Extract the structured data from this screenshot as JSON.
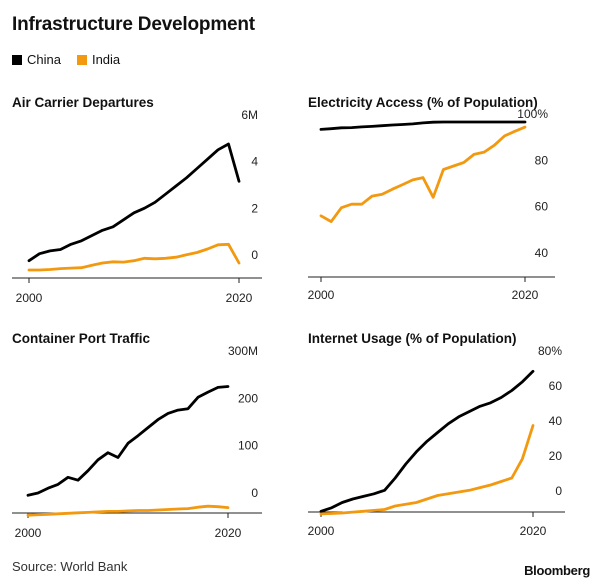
{
  "title": "Infrastructure Development",
  "legend": [
    {
      "name": "China",
      "color": "#000000"
    },
    {
      "name": "India",
      "color": "#f2990f"
    }
  ],
  "source": "Source: World Bank",
  "brand": "Bloomberg",
  "chart_data": [
    {
      "id": "air",
      "type": "line",
      "title": "Air Carrier Departures",
      "ylim": [
        0,
        6
      ],
      "xlim": [
        2000,
        2021
      ],
      "yticks": [
        {
          "v": 0,
          "label": "0"
        },
        {
          "v": 2,
          "label": "2"
        },
        {
          "v": 4,
          "label": "4"
        },
        {
          "v": 6,
          "label": "6M"
        }
      ],
      "xticks": [
        {
          "v": 2000,
          "label": "2000"
        },
        {
          "v": 2020,
          "label": "2020"
        }
      ],
      "series": [
        {
          "name": "China",
          "color": "#000000",
          "x": [
            2000,
            2001,
            2002,
            2003,
            2004,
            2005,
            2006,
            2007,
            2008,
            2009,
            2010,
            2011,
            2012,
            2013,
            2014,
            2015,
            2016,
            2017,
            2018,
            2019,
            2020
          ],
          "y": [
            0.1,
            0.4,
            0.52,
            0.58,
            0.8,
            0.95,
            1.18,
            1.4,
            1.55,
            1.85,
            2.15,
            2.35,
            2.6,
            2.95,
            3.3,
            3.65,
            4.05,
            4.45,
            4.85,
            5.1,
            3.5
          ]
        },
        {
          "name": "India",
          "color": "#f2990f",
          "x": [
            2000,
            2001,
            2002,
            2003,
            2004,
            2005,
            2006,
            2007,
            2008,
            2009,
            2010,
            2011,
            2012,
            2013,
            2014,
            2015,
            2016,
            2017,
            2018,
            2019,
            2020
          ],
          "y": [
            -0.3,
            -0.3,
            -0.28,
            -0.24,
            -0.22,
            -0.2,
            -0.1,
            0.0,
            0.05,
            0.04,
            0.1,
            0.2,
            0.18,
            0.2,
            0.25,
            0.35,
            0.45,
            0.6,
            0.78,
            0.8,
            0.0
          ]
        }
      ]
    },
    {
      "id": "elec",
      "type": "line",
      "title": "Electricity Access (% of Population)",
      "ylim": [
        40,
        100
      ],
      "xlim": [
        2000,
        2021
      ],
      "yticks": [
        {
          "v": 40,
          "label": "40"
        },
        {
          "v": 60,
          "label": "60"
        },
        {
          "v": 80,
          "label": "80"
        },
        {
          "v": 100,
          "label": "100%"
        }
      ],
      "xticks": [
        {
          "v": 2000,
          "label": "2000"
        },
        {
          "v": 2020,
          "label": "2020"
        }
      ],
      "series": [
        {
          "name": "China",
          "color": "#000000",
          "x": [
            2000,
            2001,
            2002,
            2003,
            2004,
            2005,
            2006,
            2007,
            2008,
            2009,
            2010,
            2011,
            2012,
            2013,
            2014,
            2015,
            2016,
            2017,
            2018,
            2019,
            2020
          ],
          "y": [
            96.8,
            97.1,
            97.5,
            97.6,
            97.9,
            98.1,
            98.4,
            98.7,
            98.9,
            99.2,
            99.6,
            99.9,
            100,
            100,
            100,
            100,
            100,
            100,
            100,
            100,
            100
          ]
        },
        {
          "name": "India",
          "color": "#f2990f",
          "x": [
            2000,
            2001,
            2002,
            2003,
            2004,
            2005,
            2006,
            2007,
            2008,
            2009,
            2010,
            2011,
            2012,
            2013,
            2014,
            2015,
            2016,
            2017,
            2018,
            2019,
            2020
          ],
          "y": [
            59.5,
            57,
            63,
            64.5,
            64.5,
            68,
            68.8,
            71,
            73,
            75,
            76,
            67.5,
            79.5,
            81,
            82.5,
            86,
            87,
            90,
            94,
            96,
            97.8
          ]
        }
      ]
    },
    {
      "id": "port",
      "type": "line",
      "title": "Container Port Traffic",
      "ylim": [
        0,
        300
      ],
      "xlim": [
        2000,
        2021
      ],
      "yticks": [
        {
          "v": 0,
          "label": "0"
        },
        {
          "v": 100,
          "label": "100"
        },
        {
          "v": 200,
          "label": "200"
        },
        {
          "v": 300,
          "label": "300M"
        }
      ],
      "xticks": [
        {
          "v": 2000,
          "label": "2000"
        },
        {
          "v": 2020,
          "label": "2020"
        }
      ],
      "series": [
        {
          "name": "China",
          "color": "#000000",
          "x": [
            2000,
            2001,
            2002,
            2003,
            2004,
            2005,
            2006,
            2007,
            2008,
            2009,
            2010,
            2011,
            2012,
            2013,
            2014,
            2015,
            2016,
            2017,
            2018,
            2019,
            2020
          ],
          "y": [
            12,
            17,
            27,
            35,
            50,
            44,
            64,
            87,
            102,
            92,
            122,
            138,
            155,
            172,
            185,
            192,
            195,
            219,
            230,
            240,
            242
          ]
        },
        {
          "name": "India",
          "color": "#f2990f",
          "x": [
            2000,
            2001,
            2002,
            2003,
            2004,
            2005,
            2006,
            2007,
            2008,
            2009,
            2010,
            2011,
            2012,
            2013,
            2014,
            2015,
            2016,
            2017,
            2018,
            2019,
            2020
          ],
          "y": [
            -30,
            -29,
            -28,
            -27,
            -26,
            -25,
            -24,
            -23,
            -22,
            -22,
            -21,
            -20,
            -20,
            -19,
            -18,
            -17,
            -16,
            -13,
            -11,
            -12,
            -14
          ]
        }
      ]
    },
    {
      "id": "net",
      "type": "line",
      "title": "Internet Usage (% of Population)",
      "ylim": [
        0,
        80
      ],
      "xlim": [
        2000,
        2021
      ],
      "yticks": [
        {
          "v": 0,
          "label": "0"
        },
        {
          "v": 20,
          "label": "20"
        },
        {
          "v": 40,
          "label": "40"
        },
        {
          "v": 60,
          "label": "60"
        },
        {
          "v": 80,
          "label": "80%"
        }
      ],
      "xticks": [
        {
          "v": 2000,
          "label": "2000"
        },
        {
          "v": 2020,
          "label": "2020"
        }
      ],
      "series": [
        {
          "name": "China",
          "color": "#000000",
          "x": [
            2000,
            2001,
            2002,
            2003,
            2004,
            2005,
            2006,
            2007,
            2008,
            2009,
            2010,
            2011,
            2012,
            2013,
            2014,
            2015,
            2016,
            2017,
            2018,
            2019,
            2020
          ],
          "y": [
            -7,
            -5,
            -2,
            0,
            1.5,
            3,
            5,
            12,
            20,
            27,
            33,
            38,
            43,
            47,
            50,
            53,
            55,
            58,
            62,
            67,
            73
          ]
        },
        {
          "name": "India",
          "color": "#f2990f",
          "x": [
            2000,
            2001,
            2002,
            2003,
            2004,
            2005,
            2006,
            2007,
            2008,
            2009,
            2010,
            2011,
            2012,
            2013,
            2014,
            2015,
            2016,
            2017,
            2018,
            2019,
            2020
          ],
          "y": [
            -8.5,
            -8.3,
            -8,
            -7.5,
            -7,
            -6.5,
            -6,
            -4,
            -3,
            -2,
            0,
            2,
            3,
            4,
            5,
            6.5,
            8,
            10,
            12,
            23,
            42
          ]
        }
      ]
    }
  ]
}
